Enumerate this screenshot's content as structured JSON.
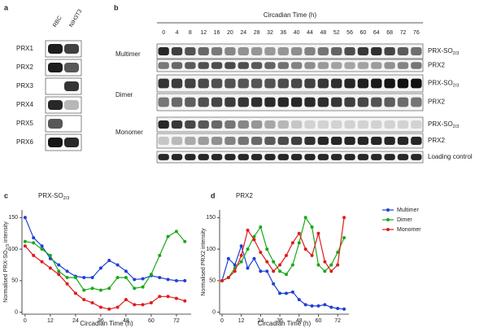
{
  "panel_labels": [
    "a",
    "b",
    "c",
    "d"
  ],
  "panel_a": {
    "lanes": [
      "RBC",
      "NIH3T3"
    ],
    "rows": [
      "PRX1",
      "PRX2",
      "PRX3",
      "PRX4",
      "PRX5",
      "PRX6"
    ]
  },
  "panel_b": {
    "axis_title": "Circadian Time (h)",
    "times": [
      "0",
      "4",
      "8",
      "12",
      "16",
      "20",
      "24",
      "28",
      "32",
      "36",
      "40",
      "44",
      "48",
      "52",
      "56",
      "60",
      "64",
      "68",
      "72",
      "76"
    ],
    "groups": [
      "Multimer",
      "Dimer",
      "Monomer"
    ],
    "row_labels": [
      {
        "text": "PRX-SO",
        "sub": "2/3"
      },
      {
        "text": "PRX2"
      },
      {
        "text": "PRX-SO",
        "sub": "2/3"
      },
      {
        "text": "PRX2"
      },
      {
        "text": "PRX-SO",
        "sub": "2/3"
      },
      {
        "text": "PRX2"
      },
      {
        "text": "Loading control"
      }
    ]
  },
  "chart_data": [
    {
      "type": "line",
      "title": {
        "text": "PRX-SO",
        "sub": "2/3"
      },
      "x_label": "Circadian Time (h)",
      "y_label": {
        "text": "Normalised PRX-SO",
        "sub": "2/3",
        "after": " intensity"
      },
      "x": [
        0,
        4,
        8,
        12,
        16,
        20,
        24,
        28,
        32,
        36,
        40,
        44,
        48,
        52,
        56,
        60,
        64,
        68,
        72,
        76
      ],
      "xlim": [
        -1.5,
        79
      ],
      "xticks": [
        0,
        12,
        24,
        36,
        48,
        60,
        72
      ],
      "ylim": [
        -3,
        162
      ],
      "yticks": [
        0,
        50,
        100,
        150
      ],
      "series": [
        {
          "name": "Multimer",
          "color": "#1f3fd6",
          "values": [
            150,
            118,
            105,
            85,
            75,
            65,
            57,
            55,
            55,
            70,
            82,
            75,
            65,
            52,
            53,
            58,
            55,
            52,
            50,
            50
          ]
        },
        {
          "name": "Dimer",
          "color": "#1aa81a",
          "values": [
            112,
            110,
            100,
            90,
            65,
            55,
            55,
            35,
            38,
            35,
            38,
            55,
            55,
            38,
            40,
            60,
            90,
            120,
            128,
            112
          ]
        },
        {
          "name": "Monomer",
          "color": "#e01b1b",
          "values": [
            105,
            90,
            80,
            70,
            60,
            45,
            30,
            20,
            15,
            8,
            5,
            8,
            20,
            12,
            12,
            15,
            25,
            25,
            22,
            18
          ]
        }
      ]
    },
    {
      "type": "line",
      "title": {
        "text": "PRX2"
      },
      "x_label": "Circadian Time (h)",
      "y_label": {
        "text": "Normalised PRX2 intensity"
      },
      "x": [
        0,
        4,
        8,
        12,
        16,
        20,
        24,
        28,
        32,
        36,
        40,
        44,
        48,
        52,
        56,
        60,
        64,
        68,
        72,
        76
      ],
      "xlim": [
        -1.5,
        79
      ],
      "xticks": [
        0,
        12,
        24,
        36,
        48,
        60,
        72
      ],
      "ylim": [
        -3,
        162
      ],
      "yticks": [
        0,
        50,
        100,
        150
      ],
      "legend": "right",
      "series": [
        {
          "name": "Multimer",
          "color": "#1f3fd6",
          "values": [
            50,
            85,
            75,
            105,
            70,
            85,
            65,
            65,
            45,
            30,
            30,
            32,
            20,
            12,
            10,
            10,
            12,
            8,
            6,
            5
          ]
        },
        {
          "name": "Dimer",
          "color": "#1aa81a",
          "values": [
            50,
            55,
            70,
            80,
            100,
            120,
            135,
            100,
            80,
            65,
            60,
            75,
            110,
            150,
            135,
            75,
            65,
            75,
            95,
            118
          ]
        },
        {
          "name": "Monomer",
          "color": "#e01b1b",
          "values": [
            50,
            55,
            65,
            90,
            130,
            115,
            95,
            80,
            65,
            75,
            90,
            110,
            125,
            100,
            90,
            125,
            80,
            65,
            75,
            150
          ]
        }
      ]
    }
  ]
}
